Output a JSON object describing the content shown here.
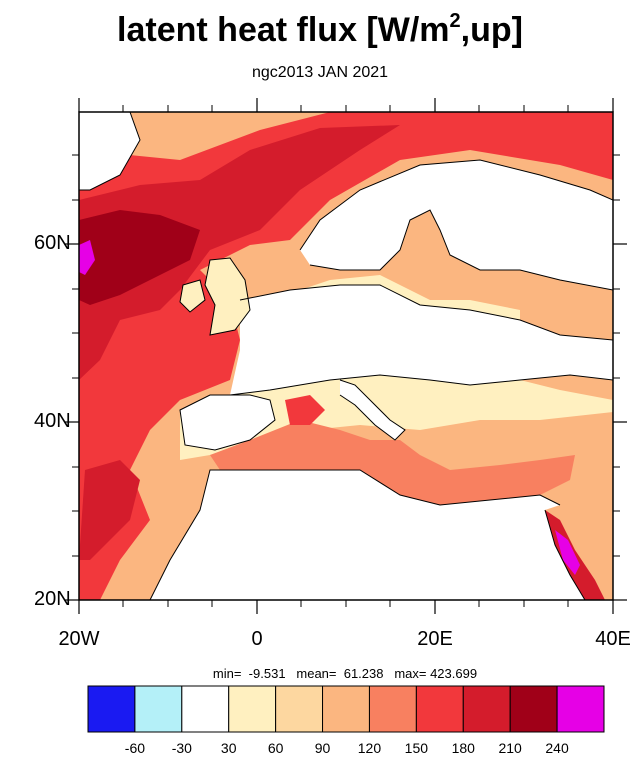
{
  "title": {
    "text": "latent heat flux [W/m",
    "superscript": "2",
    "suffix": ",up]"
  },
  "subtitle": "ngc2013 JAN 2021",
  "axes": {
    "lat_labels": [
      "60N",
      "40N",
      "20N"
    ],
    "lon_labels": [
      "20W",
      "0",
      "20E",
      "40E"
    ]
  },
  "stats": {
    "text": "min=  -9.531   mean=  61.238   max= 423.699"
  },
  "colorbar": {
    "colors": [
      "#1a1af2",
      "#b4f0f8",
      "#ffffff",
      "#fff0c0",
      "#fdd7a0",
      "#fbb680",
      "#f88060",
      "#f2383c",
      "#d41c2c",
      "#a00018",
      "#e600e6"
    ],
    "labels": [
      "-60",
      "-30",
      "30",
      "60",
      "90",
      "120",
      "150",
      "180",
      "210",
      "240"
    ]
  },
  "map_colors": {
    "land": "#ffffff",
    "ocean_base": "#fbb680",
    "coast": "#000000"
  }
}
